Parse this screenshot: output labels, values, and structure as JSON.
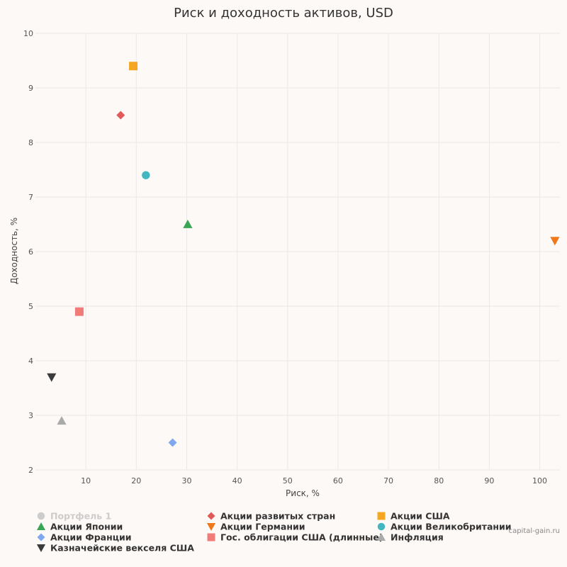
{
  "credit": "capital-gain.ru",
  "chart_data": {
    "type": "scatter",
    "title": "Риск и доходность активов, USD",
    "xlabel": "Риск, %",
    "ylabel": "Доходность, %",
    "xlim": [
      0,
      104
    ],
    "ylim": [
      2,
      10
    ],
    "x_ticks": [
      10,
      20,
      30,
      40,
      50,
      60,
      70,
      80,
      90,
      100
    ],
    "y_ticks": [
      2,
      3,
      4,
      5,
      6,
      7,
      8,
      9,
      10
    ],
    "grid": true,
    "legend_position": "bottom",
    "series": [
      {
        "name": "Портфель 1",
        "marker": "circle",
        "color": "#cccccc",
        "inactive": true,
        "points": []
      },
      {
        "name": "Акции развитых стран",
        "marker": "diamond",
        "color": "#e05a5a",
        "points": [
          {
            "x": 16.9,
            "y": 8.5
          }
        ]
      },
      {
        "name": "Акции США",
        "marker": "square",
        "color": "#f5a623",
        "points": [
          {
            "x": 19.4,
            "y": 9.4
          }
        ]
      },
      {
        "name": "Акции Японии",
        "marker": "triangle",
        "color": "#3aa655",
        "points": [
          {
            "x": 30.2,
            "y": 6.5
          }
        ]
      },
      {
        "name": "Акции Германии",
        "marker": "triangle-down",
        "color": "#f07818",
        "points": [
          {
            "x": 103.0,
            "y": 6.2
          }
        ]
      },
      {
        "name": "Акции Великобритании",
        "marker": "circle",
        "color": "#44b6c0",
        "points": [
          {
            "x": 21.9,
            "y": 7.4
          }
        ]
      },
      {
        "name": "Акции Франции",
        "marker": "diamond",
        "color": "#7fa8f0",
        "points": [
          {
            "x": 27.2,
            "y": 2.5
          }
        ]
      },
      {
        "name": "Гос. облигации США (длинные)",
        "marker": "square",
        "color": "#f07b78",
        "points": [
          {
            "x": 8.7,
            "y": 4.9
          }
        ]
      },
      {
        "name": "Инфляция",
        "marker": "triangle",
        "color": "#aaaaaa",
        "points": [
          {
            "x": 5.2,
            "y": 2.9
          }
        ]
      },
      {
        "name": "Казначейские векселя США",
        "marker": "triangle-down",
        "color": "#3b3b3b",
        "points": [
          {
            "x": 3.2,
            "y": 3.7
          }
        ]
      }
    ]
  }
}
